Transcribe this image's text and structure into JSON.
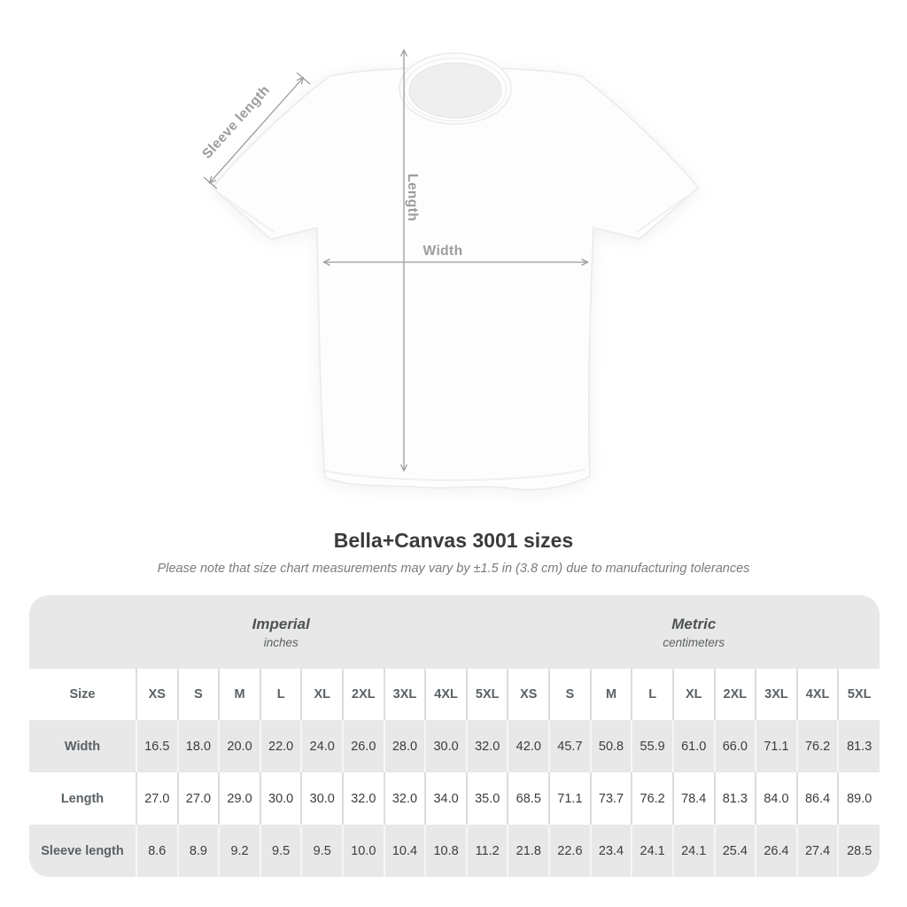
{
  "title": "Bella+Canvas 3001 sizes",
  "subtitle": "Please note that size chart measurements may vary by ±1.5 in (3.8 cm) due to manufacturing tolerances",
  "diagram": {
    "sleeve_length_label": "Sleeve length",
    "length_label": "Length",
    "width_label": "Width"
  },
  "table": {
    "size_header": "Size",
    "groups": [
      {
        "label": "Imperial",
        "sublabel": "inches"
      },
      {
        "label": "Metric",
        "sublabel": "centimeters"
      }
    ],
    "sizes": [
      "XS",
      "S",
      "M",
      "L",
      "XL",
      "2XL",
      "3XL",
      "4XL",
      "5XL"
    ],
    "rows": [
      {
        "key": "width",
        "label": "Width",
        "imperial": [
          "16.5",
          "18.0",
          "20.0",
          "22.0",
          "24.0",
          "26.0",
          "28.0",
          "30.0",
          "32.0"
        ],
        "metric": [
          "42.0",
          "45.7",
          "50.8",
          "55.9",
          "61.0",
          "66.0",
          "71.1",
          "76.2",
          "81.3"
        ]
      },
      {
        "key": "length",
        "label": "Length",
        "imperial": [
          "27.0",
          "27.0",
          "29.0",
          "30.0",
          "30.0",
          "32.0",
          "32.0",
          "34.0",
          "35.0"
        ],
        "metric": [
          "68.5",
          "71.1",
          "73.7",
          "76.2",
          "78.4",
          "81.3",
          "84.0",
          "86.4",
          "89.0"
        ]
      },
      {
        "key": "sleeve-length",
        "label": "Sleeve length",
        "imperial": [
          "8.6",
          "8.9",
          "9.2",
          "9.5",
          "9.5",
          "10.0",
          "10.4",
          "10.8",
          "11.2"
        ],
        "metric": [
          "21.8",
          "22.6",
          "23.4",
          "24.1",
          "24.1",
          "25.4",
          "26.4",
          "27.4",
          "28.5"
        ]
      }
    ]
  },
  "chart_data": {
    "type": "table",
    "title": "Bella+Canvas 3001 sizes",
    "note": "Please note that size chart measurements may vary by ±1.5 in (3.8 cm) due to manufacturing tolerances",
    "unit_groups": [
      {
        "label": "Imperial",
        "unit": "inches"
      },
      {
        "label": "Metric",
        "unit": "centimeters"
      }
    ],
    "columns": [
      "XS",
      "S",
      "M",
      "L",
      "XL",
      "2XL",
      "3XL",
      "4XL",
      "5XL"
    ],
    "rows": [
      {
        "measurement": "Width",
        "imperial": [
          16.5,
          18.0,
          20.0,
          22.0,
          24.0,
          26.0,
          28.0,
          30.0,
          32.0
        ],
        "metric": [
          42.0,
          45.7,
          50.8,
          55.9,
          61.0,
          66.0,
          71.1,
          76.2,
          81.3
        ]
      },
      {
        "measurement": "Length",
        "imperial": [
          27.0,
          27.0,
          29.0,
          30.0,
          30.0,
          32.0,
          32.0,
          34.0,
          35.0
        ],
        "metric": [
          68.5,
          71.1,
          73.7,
          76.2,
          78.4,
          81.3,
          84.0,
          86.4,
          89.0
        ]
      },
      {
        "measurement": "Sleeve length",
        "imperial": [
          8.6,
          8.9,
          9.2,
          9.5,
          9.5,
          10.0,
          10.4,
          10.8,
          11.2
        ],
        "metric": [
          21.8,
          22.6,
          23.4,
          24.1,
          24.1,
          25.4,
          26.4,
          27.4,
          28.5
        ]
      }
    ]
  },
  "colors": {
    "annotation_gray": "#9c9c9c",
    "table_bg": "#e8e8e8",
    "row_white": "#ffffff",
    "sep_on_white": "#dcdcdc",
    "sep_on_gray": "#f6f6f6",
    "text_dark": "#3a3d3f",
    "text_label": "#596165",
    "title_color": "#3b3b3b",
    "subtitle_color": "#7b7b7b",
    "shirt_fill": "#fdfdfd",
    "shirt_stroke": "#ebebeb"
  }
}
